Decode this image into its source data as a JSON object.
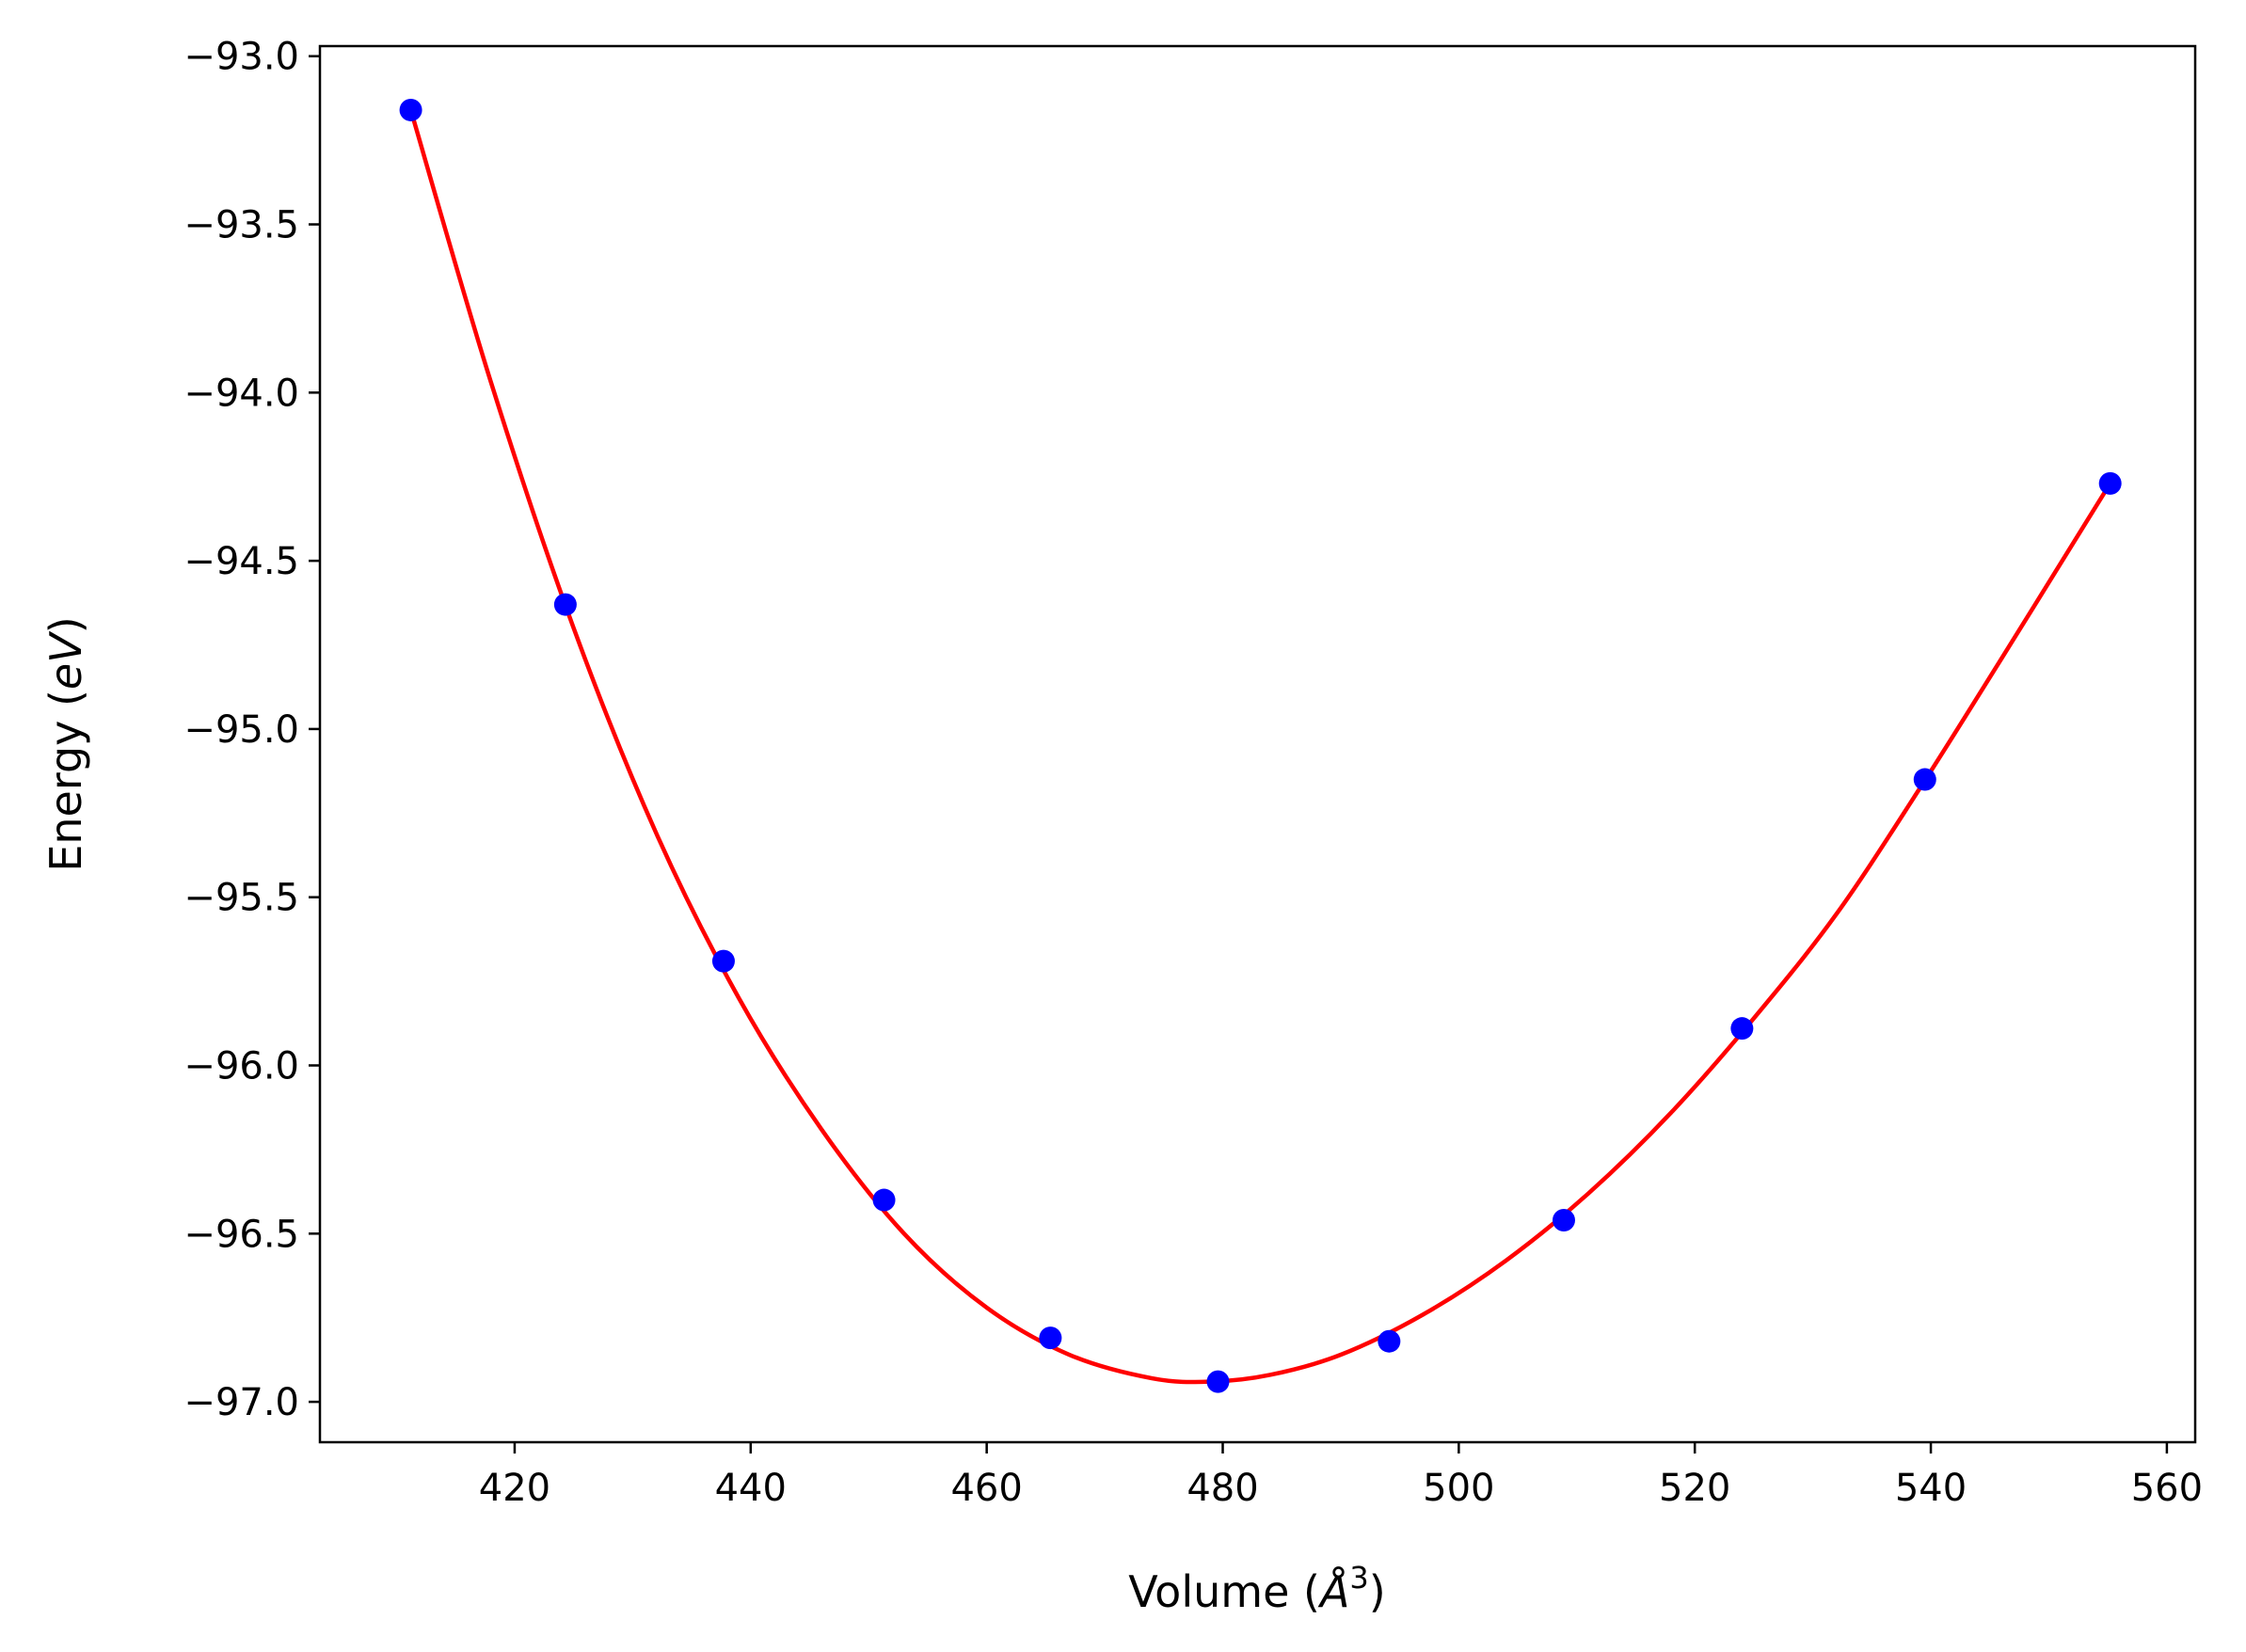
{
  "chart_data": {
    "type": "scatter",
    "title": "",
    "xlabel": {
      "prefix": "Volume (",
      "symbol": "Å",
      "exponent": "3",
      "suffix": ")"
    },
    "ylabel": {
      "prefix": "Energy (",
      "unit": "eV",
      "suffix": ")"
    },
    "xlim": [
      403.5,
      562.4
    ],
    "ylim": [
      -97.12,
      -92.97
    ],
    "x_ticks": [
      420,
      440,
      460,
      480,
      500,
      520,
      540,
      560
    ],
    "x_tick_labels": [
      "420",
      "440",
      "460",
      "480",
      "500",
      "520",
      "540",
      "560"
    ],
    "y_ticks": [
      -93.0,
      -93.5,
      -94.0,
      -94.5,
      -95.0,
      -95.5,
      -96.0,
      -96.5,
      -97.0
    ],
    "y_tick_labels": [
      "−93.0",
      "−93.5",
      "−94.0",
      "−94.5",
      "−95.0",
      "−95.5",
      "−96.0",
      "−96.5",
      "−97.0"
    ],
    "grid": false,
    "series": [
      {
        "kind": "points",
        "color": "#0000ff",
        "x": [
          411.2,
          424.3,
          437.7,
          451.3,
          465.4,
          479.6,
          494.1,
          508.9,
          524.0,
          539.5,
          555.2
        ],
        "y": [
          -93.16,
          -94.63,
          -95.69,
          -96.4,
          -96.81,
          -96.94,
          -96.82,
          -96.46,
          -95.89,
          -95.15,
          -94.27
        ]
      },
      {
        "kind": "fit-line",
        "color": "#ff0000",
        "x": [
          411.2,
          418,
          425,
          432,
          439,
          446,
          453,
          460,
          467,
          474,
          479,
          484,
          490,
          497,
          504,
          511,
          518,
          525,
          532,
          539,
          546,
          555.2
        ],
        "y": [
          -93.16,
          -93.97,
          -94.7,
          -95.31,
          -95.8,
          -96.19,
          -96.5,
          -96.72,
          -96.86,
          -96.93,
          -96.94,
          -96.92,
          -96.86,
          -96.74,
          -96.58,
          -96.38,
          -96.14,
          -95.86,
          -95.55,
          -95.18,
          -94.79,
          -94.27
        ]
      }
    ]
  }
}
